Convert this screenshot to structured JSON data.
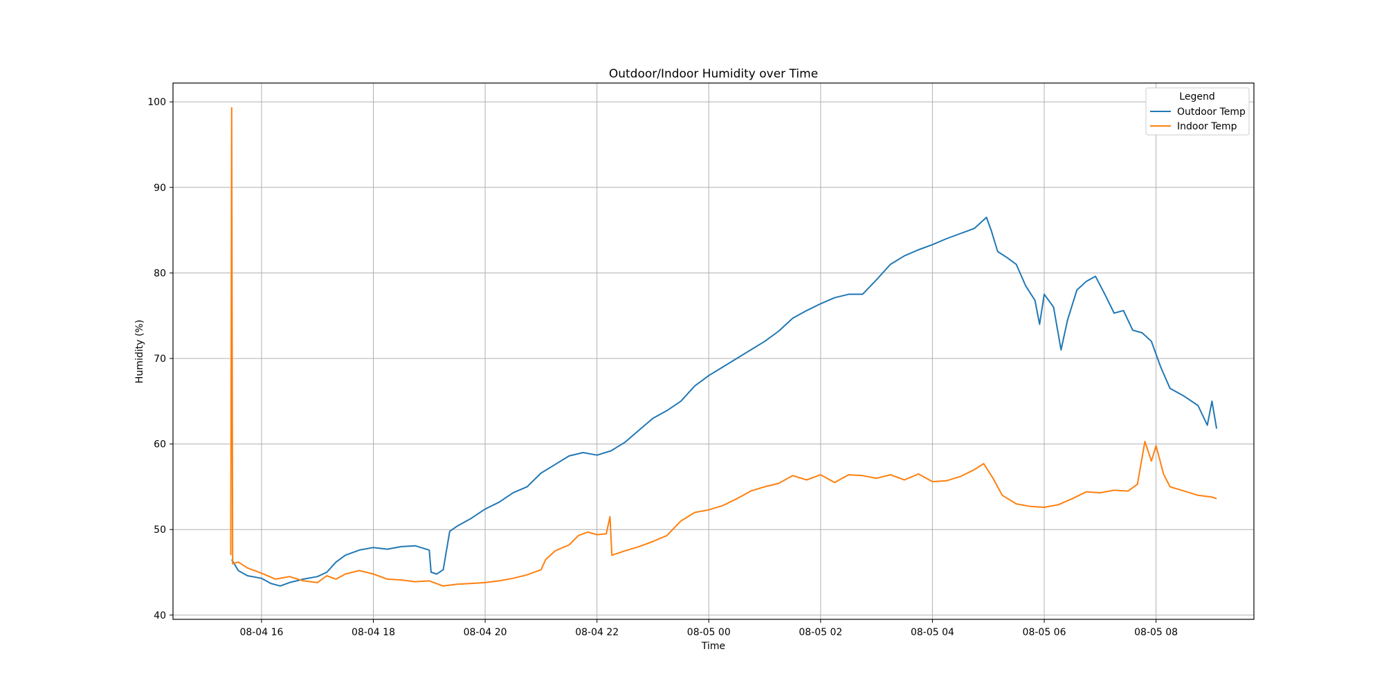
{
  "chart_data": {
    "type": "line",
    "title": "Outdoor/Indoor Humidity over Time",
    "xlabel": "Time",
    "ylabel": "Humidity (%)",
    "x_axis_type": "time",
    "xlim": [
      "2025-08-04 14:25",
      "2025-08-05 09:45"
    ],
    "ylim": [
      39.5,
      102.2
    ],
    "x_ticks": [
      {
        "t": "2025-08-04 16:00",
        "label": "08-04 16"
      },
      {
        "t": "2025-08-04 18:00",
        "label": "08-04 18"
      },
      {
        "t": "2025-08-04 20:00",
        "label": "08-04 20"
      },
      {
        "t": "2025-08-04 22:00",
        "label": "08-04 22"
      },
      {
        "t": "2025-08-05 00:00",
        "label": "08-05 00"
      },
      {
        "t": "2025-08-05 02:00",
        "label": "08-05 02"
      },
      {
        "t": "2025-08-05 04:00",
        "label": "08-05 04"
      },
      {
        "t": "2025-08-05 06:00",
        "label": "08-05 06"
      },
      {
        "t": "2025-08-05 08:00",
        "label": "08-05 08"
      }
    ],
    "y_ticks": [
      40,
      50,
      60,
      70,
      80,
      90,
      100
    ],
    "grid": true,
    "legend": {
      "title": "Legend",
      "position": "top-right"
    },
    "series": [
      {
        "name": "Outdoor Temp",
        "color": "#1f77b4",
        "points": [
          [
            "2025-08-04 15:28",
            46.5
          ],
          [
            "2025-08-04 15:35",
            45.2
          ],
          [
            "2025-08-04 15:45",
            44.6
          ],
          [
            "2025-08-04 16:00",
            44.3
          ],
          [
            "2025-08-04 16:10",
            43.7
          ],
          [
            "2025-08-04 16:20",
            43.4
          ],
          [
            "2025-08-04 16:30",
            43.8
          ],
          [
            "2025-08-04 16:45",
            44.2
          ],
          [
            "2025-08-04 17:00",
            44.5
          ],
          [
            "2025-08-04 17:10",
            45.0
          ],
          [
            "2025-08-04 17:20",
            46.2
          ],
          [
            "2025-08-04 17:30",
            47.0
          ],
          [
            "2025-08-04 17:45",
            47.6
          ],
          [
            "2025-08-04 18:00",
            47.9
          ],
          [
            "2025-08-04 18:15",
            47.7
          ],
          [
            "2025-08-04 18:30",
            48.0
          ],
          [
            "2025-08-04 18:45",
            48.1
          ],
          [
            "2025-08-04 19:00",
            47.6
          ],
          [
            "2025-08-04 19:02",
            45.0
          ],
          [
            "2025-08-04 19:08",
            44.8
          ],
          [
            "2025-08-04 19:15",
            45.3
          ],
          [
            "2025-08-04 19:22",
            49.8
          ],
          [
            "2025-08-04 19:30",
            50.4
          ],
          [
            "2025-08-04 19:45",
            51.3
          ],
          [
            "2025-08-04 20:00",
            52.4
          ],
          [
            "2025-08-04 20:15",
            53.2
          ],
          [
            "2025-08-04 20:30",
            54.3
          ],
          [
            "2025-08-04 20:45",
            55.0
          ],
          [
            "2025-08-04 21:00",
            56.6
          ],
          [
            "2025-08-04 21:15",
            57.6
          ],
          [
            "2025-08-04 21:30",
            58.6
          ],
          [
            "2025-08-04 21:45",
            59.0
          ],
          [
            "2025-08-04 22:00",
            58.7
          ],
          [
            "2025-08-04 22:15",
            59.2
          ],
          [
            "2025-08-04 22:30",
            60.2
          ],
          [
            "2025-08-04 22:45",
            61.6
          ],
          [
            "2025-08-04 23:00",
            63.0
          ],
          [
            "2025-08-04 23:15",
            63.9
          ],
          [
            "2025-08-04 23:30",
            65.0
          ],
          [
            "2025-08-04 23:45",
            66.8
          ],
          [
            "2025-08-05 00:00",
            68.0
          ],
          [
            "2025-08-05 00:15",
            69.0
          ],
          [
            "2025-08-05 00:30",
            70.0
          ],
          [
            "2025-08-05 00:45",
            71.0
          ],
          [
            "2025-08-05 01:00",
            72.0
          ],
          [
            "2025-08-05 01:15",
            73.2
          ],
          [
            "2025-08-05 01:30",
            74.7
          ],
          [
            "2025-08-05 01:45",
            75.6
          ],
          [
            "2025-08-05 02:00",
            76.4
          ],
          [
            "2025-08-05 02:15",
            77.1
          ],
          [
            "2025-08-05 02:30",
            77.5
          ],
          [
            "2025-08-05 02:45",
            77.5
          ],
          [
            "2025-08-05 03:00",
            79.2
          ],
          [
            "2025-08-05 03:15",
            81.0
          ],
          [
            "2025-08-05 03:30",
            82.0
          ],
          [
            "2025-08-05 03:45",
            82.7
          ],
          [
            "2025-08-05 04:00",
            83.3
          ],
          [
            "2025-08-05 04:15",
            84.0
          ],
          [
            "2025-08-05 04:30",
            84.6
          ],
          [
            "2025-08-05 04:45",
            85.2
          ],
          [
            "2025-08-05 04:58",
            86.5
          ],
          [
            "2025-08-05 05:03",
            85.0
          ],
          [
            "2025-08-05 05:10",
            82.5
          ],
          [
            "2025-08-05 05:20",
            81.8
          ],
          [
            "2025-08-05 05:30",
            81.0
          ],
          [
            "2025-08-05 05:40",
            78.5
          ],
          [
            "2025-08-05 05:50",
            76.8
          ],
          [
            "2025-08-05 05:55",
            74.0
          ],
          [
            "2025-08-05 06:00",
            77.5
          ],
          [
            "2025-08-05 06:10",
            76.0
          ],
          [
            "2025-08-05 06:18",
            71.0
          ],
          [
            "2025-08-05 06:25",
            74.5
          ],
          [
            "2025-08-05 06:35",
            78.0
          ],
          [
            "2025-08-05 06:45",
            79.0
          ],
          [
            "2025-08-05 06:55",
            79.6
          ],
          [
            "2025-08-05 07:05",
            77.5
          ],
          [
            "2025-08-05 07:15",
            75.3
          ],
          [
            "2025-08-05 07:25",
            75.6
          ],
          [
            "2025-08-05 07:35",
            73.3
          ],
          [
            "2025-08-05 07:45",
            73.0
          ],
          [
            "2025-08-05 07:55",
            72.0
          ],
          [
            "2025-08-05 08:05",
            69.0
          ],
          [
            "2025-08-05 08:15",
            66.5
          ],
          [
            "2025-08-05 08:30",
            65.6
          ],
          [
            "2025-08-05 08:45",
            64.5
          ],
          [
            "2025-08-05 08:55",
            62.2
          ],
          [
            "2025-08-05 09:00",
            65.0
          ],
          [
            "2025-08-05 09:05",
            61.8
          ]
        ]
      },
      {
        "name": "Indoor Temp",
        "color": "#ff7f0e",
        "points": [
          [
            "2025-08-04 15:27",
            47.0
          ],
          [
            "2025-08-04 15:28",
            99.3
          ],
          [
            "2025-08-04 15:29",
            46.0
          ],
          [
            "2025-08-04 15:35",
            46.2
          ],
          [
            "2025-08-04 15:45",
            45.5
          ],
          [
            "2025-08-04 16:00",
            44.9
          ],
          [
            "2025-08-04 16:15",
            44.2
          ],
          [
            "2025-08-04 16:30",
            44.5
          ],
          [
            "2025-08-04 16:45",
            44.0
          ],
          [
            "2025-08-04 17:00",
            43.8
          ],
          [
            "2025-08-04 17:10",
            44.6
          ],
          [
            "2025-08-04 17:20",
            44.2
          ],
          [
            "2025-08-04 17:30",
            44.8
          ],
          [
            "2025-08-04 17:45",
            45.2
          ],
          [
            "2025-08-04 18:00",
            44.8
          ],
          [
            "2025-08-04 18:15",
            44.2
          ],
          [
            "2025-08-04 18:30",
            44.1
          ],
          [
            "2025-08-04 18:45",
            43.9
          ],
          [
            "2025-08-04 19:00",
            44.0
          ],
          [
            "2025-08-04 19:15",
            43.4
          ],
          [
            "2025-08-04 19:30",
            43.6
          ],
          [
            "2025-08-04 19:45",
            43.7
          ],
          [
            "2025-08-04 20:00",
            43.8
          ],
          [
            "2025-08-04 20:15",
            44.0
          ],
          [
            "2025-08-04 20:30",
            44.3
          ],
          [
            "2025-08-04 20:45",
            44.7
          ],
          [
            "2025-08-04 21:00",
            45.3
          ],
          [
            "2025-08-04 21:05",
            46.5
          ],
          [
            "2025-08-04 21:15",
            47.5
          ],
          [
            "2025-08-04 21:30",
            48.2
          ],
          [
            "2025-08-04 21:40",
            49.3
          ],
          [
            "2025-08-04 21:50",
            49.7
          ],
          [
            "2025-08-04 22:00",
            49.4
          ],
          [
            "2025-08-04 22:10",
            49.5
          ],
          [
            "2025-08-04 22:14",
            51.5
          ],
          [
            "2025-08-04 22:16",
            47.0
          ],
          [
            "2025-08-04 22:30",
            47.5
          ],
          [
            "2025-08-04 22:45",
            48.0
          ],
          [
            "2025-08-04 23:00",
            48.6
          ],
          [
            "2025-08-04 23:15",
            49.3
          ],
          [
            "2025-08-04 23:30",
            51.0
          ],
          [
            "2025-08-04 23:45",
            52.0
          ],
          [
            "2025-08-05 00:00",
            52.3
          ],
          [
            "2025-08-05 00:15",
            52.8
          ],
          [
            "2025-08-05 00:30",
            53.6
          ],
          [
            "2025-08-05 00:45",
            54.5
          ],
          [
            "2025-08-05 01:00",
            55.0
          ],
          [
            "2025-08-05 01:15",
            55.4
          ],
          [
            "2025-08-05 01:30",
            56.3
          ],
          [
            "2025-08-05 01:45",
            55.8
          ],
          [
            "2025-08-05 02:00",
            56.4
          ],
          [
            "2025-08-05 02:15",
            55.5
          ],
          [
            "2025-08-05 02:30",
            56.4
          ],
          [
            "2025-08-05 02:45",
            56.3
          ],
          [
            "2025-08-05 03:00",
            56.0
          ],
          [
            "2025-08-05 03:15",
            56.4
          ],
          [
            "2025-08-05 03:30",
            55.8
          ],
          [
            "2025-08-05 03:45",
            56.5
          ],
          [
            "2025-08-05 04:00",
            55.6
          ],
          [
            "2025-08-05 04:15",
            55.7
          ],
          [
            "2025-08-05 04:30",
            56.2
          ],
          [
            "2025-08-05 04:45",
            57.0
          ],
          [
            "2025-08-05 04:55",
            57.7
          ],
          [
            "2025-08-05 05:05",
            56.0
          ],
          [
            "2025-08-05 05:15",
            54.0
          ],
          [
            "2025-08-05 05:30",
            53.0
          ],
          [
            "2025-08-05 05:45",
            52.7
          ],
          [
            "2025-08-05 06:00",
            52.6
          ],
          [
            "2025-08-05 06:15",
            52.9
          ],
          [
            "2025-08-05 06:30",
            53.6
          ],
          [
            "2025-08-05 06:45",
            54.4
          ],
          [
            "2025-08-05 07:00",
            54.3
          ],
          [
            "2025-08-05 07:15",
            54.6
          ],
          [
            "2025-08-05 07:30",
            54.5
          ],
          [
            "2025-08-05 07:40",
            55.3
          ],
          [
            "2025-08-05 07:48",
            60.3
          ],
          [
            "2025-08-05 07:55",
            58.0
          ],
          [
            "2025-08-05 08:00",
            59.8
          ],
          [
            "2025-08-05 08:08",
            56.5
          ],
          [
            "2025-08-05 08:15",
            55.0
          ],
          [
            "2025-08-05 08:30",
            54.5
          ],
          [
            "2025-08-05 08:45",
            54.0
          ],
          [
            "2025-08-05 09:00",
            53.8
          ],
          [
            "2025-08-05 09:05",
            53.6
          ]
        ]
      }
    ]
  }
}
